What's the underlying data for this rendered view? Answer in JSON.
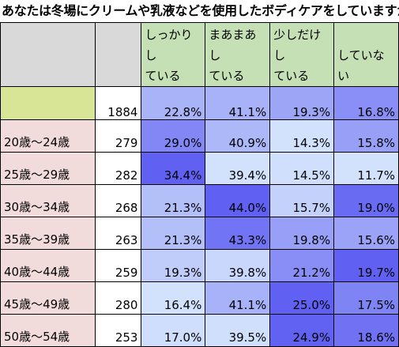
{
  "title": "あなたは冬場にクリームや乳液などを使用したボディケアをしていますか",
  "chart_data": {
    "type": "table",
    "columns": [
      {
        "line1": "しっかりし",
        "line2": "ている"
      },
      {
        "line1": "まあまあし",
        "line2": "ている"
      },
      {
        "line1": "少しだけし",
        "line2": "ている"
      },
      {
        "line1": "",
        "line2": "していない"
      }
    ],
    "total": {
      "n": "1884",
      "values": [
        "22.8%",
        "41.1%",
        "19.3%",
        "16.8%"
      ]
    },
    "rows": [
      {
        "label": "20歳～24歳",
        "n": "279",
        "values": [
          "29.0%",
          "40.9%",
          "14.3%",
          "15.8%"
        ]
      },
      {
        "label": "25歳～29歳",
        "n": "282",
        "values": [
          "34.4%",
          "39.4%",
          "14.5%",
          "11.7%"
        ]
      },
      {
        "label": "30歳～34歳",
        "n": "268",
        "values": [
          "21.3%",
          "44.0%",
          "15.7%",
          "19.0%"
        ]
      },
      {
        "label": "35歳～39歳",
        "n": "263",
        "values": [
          "21.3%",
          "43.3%",
          "19.8%",
          "15.6%"
        ]
      },
      {
        "label": "40歳～44歳",
        "n": "259",
        "values": [
          "19.3%",
          "39.8%",
          "21.2%",
          "19.7%"
        ]
      },
      {
        "label": "45歳～49歳",
        "n": "280",
        "values": [
          "16.4%",
          "41.1%",
          "25.0%",
          "17.5%"
        ]
      },
      {
        "label": "50歳～54歳",
        "n": "253",
        "values": [
          "17.0%",
          "39.5%",
          "24.9%",
          "18.6%"
        ]
      }
    ]
  }
}
